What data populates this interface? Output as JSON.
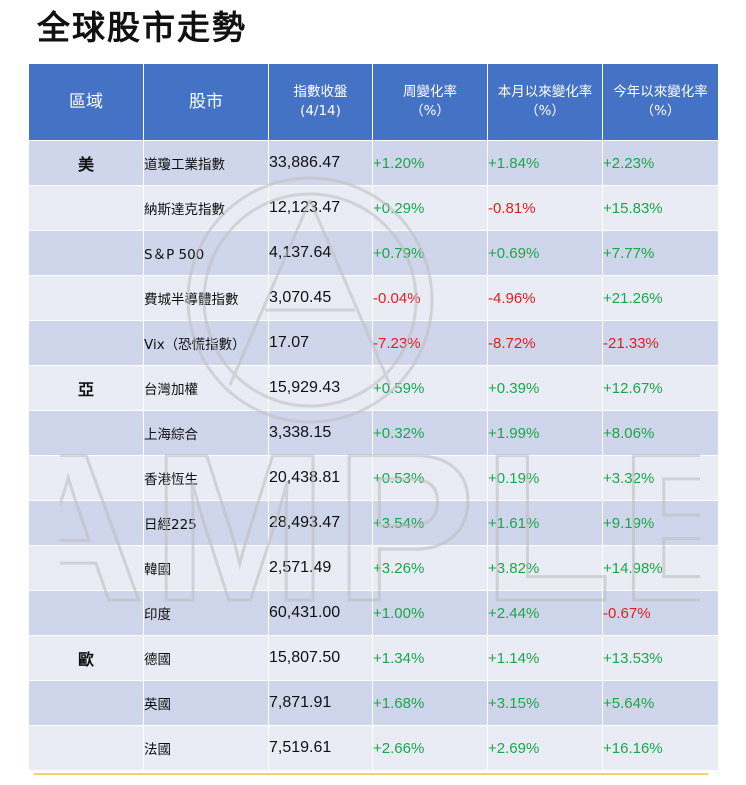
{
  "title": "全球股市走勢",
  "watermark": "AMPLE",
  "headers": {
    "region": "區域",
    "market": "股市",
    "close": "指數收盤",
    "close_date": "(4/14)",
    "week": "周變化率",
    "week_unit": "（%）",
    "mtd": "本月以來變化率",
    "mtd_unit": "（%）",
    "ytd": "今年以來變化率",
    "ytd_unit": "（%）"
  },
  "colors": {
    "header": "#4472c4",
    "positive": "#1aa84a",
    "negative": "#e0201f"
  },
  "rows": [
    {
      "region": "美",
      "market": "道瓊工業指數",
      "close": "33,886.47",
      "week": "+1.20%",
      "mtd": "+1.84%",
      "ytd": "+2.23%"
    },
    {
      "region": "",
      "market": "納斯達克指數",
      "close": "12,123.47",
      "week": "+0.29%",
      "mtd": "-0.81%",
      "ytd": "+15.83%"
    },
    {
      "region": "",
      "market": "S＆P 500",
      "close": "4,137.64",
      "week": "+0.79%",
      "mtd": "+0.69%",
      "ytd": "+7.77%"
    },
    {
      "region": "",
      "market": "費城半導體指數",
      "close": "3,070.45",
      "week": "-0.04%",
      "mtd": "-4.96%",
      "ytd": "+21.26%"
    },
    {
      "region": "",
      "market": "Vix（恐慌指數）",
      "close": "17.07",
      "week": "-7.23%",
      "mtd": "-8.72%",
      "ytd": "-21.33%"
    },
    {
      "region": "亞",
      "market": "台灣加權",
      "close": "15,929.43",
      "week": "+0.59%",
      "mtd": "+0.39%",
      "ytd": "+12.67%"
    },
    {
      "region": "",
      "market": "上海綜合",
      "close": "3,338.15",
      "week": "+0.32%",
      "mtd": "+1.99%",
      "ytd": "+8.06%"
    },
    {
      "region": "",
      "market": "香港恆生",
      "close": "20,438.81",
      "week": "+0.53%",
      "mtd": "+0.19%",
      "ytd": "+3.32%"
    },
    {
      "region": "",
      "market": "日經225",
      "close": "28,493.47",
      "week": "+3.54%",
      "mtd": "+1.61%",
      "ytd": "+9.19%"
    },
    {
      "region": "",
      "market": "韓國",
      "close": "2,571.49",
      "week": "+3.26%",
      "mtd": "+3.82%",
      "ytd": "+14.98%"
    },
    {
      "region": "",
      "market": "印度",
      "close": "60,431.00",
      "week": "+1.00%",
      "mtd": "+2.44%",
      "ytd": "-0.67%"
    },
    {
      "region": "歐",
      "market": "德國",
      "close": "15,807.50",
      "week": "+1.34%",
      "mtd": "+1.14%",
      "ytd": "+13.53%"
    },
    {
      "region": "",
      "market": "英國",
      "close": "7,871.91",
      "week": "+1.68%",
      "mtd": "+3.15%",
      "ytd": "+5.64%"
    },
    {
      "region": "",
      "market": "法國",
      "close": "7,519.61",
      "week": "+2.66%",
      "mtd": "+2.69%",
      "ytd": "+16.16%"
    }
  ]
}
